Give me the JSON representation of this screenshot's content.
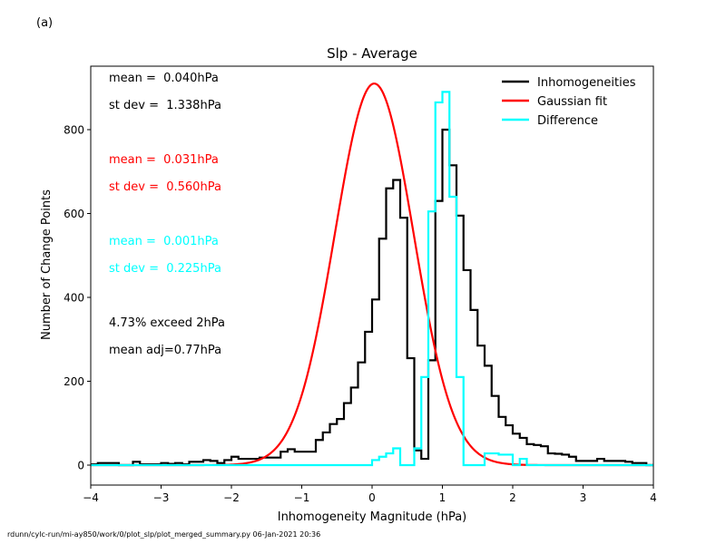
{
  "panel_label": "(a)",
  "footer_text": "rdunn/cylc-run/mi-ay850/work/0/plot_slp/plot_merged_summary.py   06-Jan-2021 20:36",
  "chart_data": {
    "type": "line",
    "title": "Slp - Average",
    "xlabel": "Inhomogeneity Magnitude (hPa)",
    "ylabel": "Number of Change Points",
    "xlim": [
      -4,
      4
    ],
    "ylim": [
      -50,
      950
    ],
    "xticks": [
      -4,
      -3,
      -2,
      -1,
      0,
      1,
      2,
      3,
      4
    ],
    "xtick_labels": [
      "−4",
      "−3",
      "−2",
      "−1",
      "0",
      "1",
      "2",
      "3",
      "4"
    ],
    "yticks": [
      0,
      200,
      400,
      600,
      800
    ],
    "ytick_labels": [
      "0",
      "200",
      "400",
      "600",
      "800"
    ],
    "grid": false,
    "legend_position": "top-right",
    "bin_edges_start": -4.0,
    "bin_width": 0.1,
    "series": [
      {
        "name": "Inhomogeneities",
        "color": "#000000",
        "style": "step",
        "values": [
          2,
          5,
          5,
          5,
          0,
          0,
          8,
          2,
          2,
          2,
          5,
          3,
          5,
          2,
          8,
          8,
          12,
          10,
          5,
          12,
          20,
          15,
          15,
          15,
          18,
          18,
          18,
          32,
          38,
          32,
          32,
          32,
          60,
          78,
          98,
          110,
          148,
          185,
          245,
          318,
          395,
          540,
          660,
          680,
          590,
          255,
          35,
          15,
          250,
          630,
          800,
          715,
          595,
          465,
          370,
          285,
          237,
          165,
          115,
          95,
          75,
          65,
          50,
          48,
          45,
          28,
          27,
          25,
          20,
          10,
          10,
          10,
          15,
          10,
          10,
          10,
          8,
          5,
          5,
          0
        ]
      },
      {
        "name": "Gaussian fit",
        "color": "#ff0000",
        "style": "line",
        "mean": 0.031,
        "stdev": 0.56,
        "peak": 910
      },
      {
        "name": "Difference",
        "color": "#00ffff",
        "style": "step",
        "values": [
          0,
          0,
          0,
          0,
          0,
          0,
          0,
          0,
          0,
          0,
          0,
          0,
          0,
          0,
          0,
          0,
          0,
          0,
          0,
          0,
          0,
          0,
          0,
          0,
          0,
          0,
          0,
          0,
          0,
          0,
          0,
          0,
          0,
          0,
          0,
          0,
          0,
          0,
          0,
          0,
          12,
          20,
          28,
          40,
          0,
          0,
          40,
          210,
          605,
          865,
          890,
          640,
          210,
          0,
          0,
          0,
          28,
          28,
          25,
          25,
          0,
          15,
          0,
          0,
          0,
          0,
          0,
          0,
          0,
          0,
          0,
          0,
          0,
          0,
          0,
          0,
          0,
          0,
          0,
          0
        ]
      }
    ],
    "annotations": [
      {
        "text": "mean =  0.040hPa",
        "color": "#000000"
      },
      {
        "text": "st dev =  1.338hPa",
        "color": "#000000"
      },
      {
        "text": "mean =  0.031hPa",
        "color": "#ff0000"
      },
      {
        "text": "st dev =  0.560hPa",
        "color": "#ff0000"
      },
      {
        "text": "mean =  0.001hPa",
        "color": "#00ffff"
      },
      {
        "text": "st dev =  0.225hPa",
        "color": "#00ffff"
      },
      {
        "text": "4.73% exceed 2hPa",
        "color": "#000000"
      },
      {
        "text": "mean adj=0.77hPa",
        "color": "#000000"
      }
    ]
  }
}
